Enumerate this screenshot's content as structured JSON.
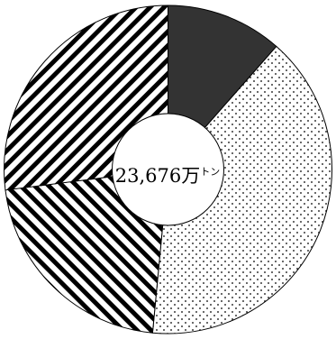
{
  "chart_data": {
    "type": "pie",
    "variant": "donut",
    "center_label": {
      "value": "23,676",
      "unit": "万",
      "unit_suffix": "トン"
    },
    "slices": [
      {
        "value": 11.5,
        "fill": "solid-dark",
        "color": "#333333"
      },
      {
        "value": 40.0,
        "fill": "dots",
        "color": "#000000"
      },
      {
        "value": 21.5,
        "fill": "hatch-backslash",
        "color": "#000000"
      },
      {
        "value": 27.0,
        "fill": "hatch-slash",
        "color": "#000000"
      }
    ],
    "start_angle_deg": 0,
    "direction": "clockwise",
    "legend": "none"
  }
}
